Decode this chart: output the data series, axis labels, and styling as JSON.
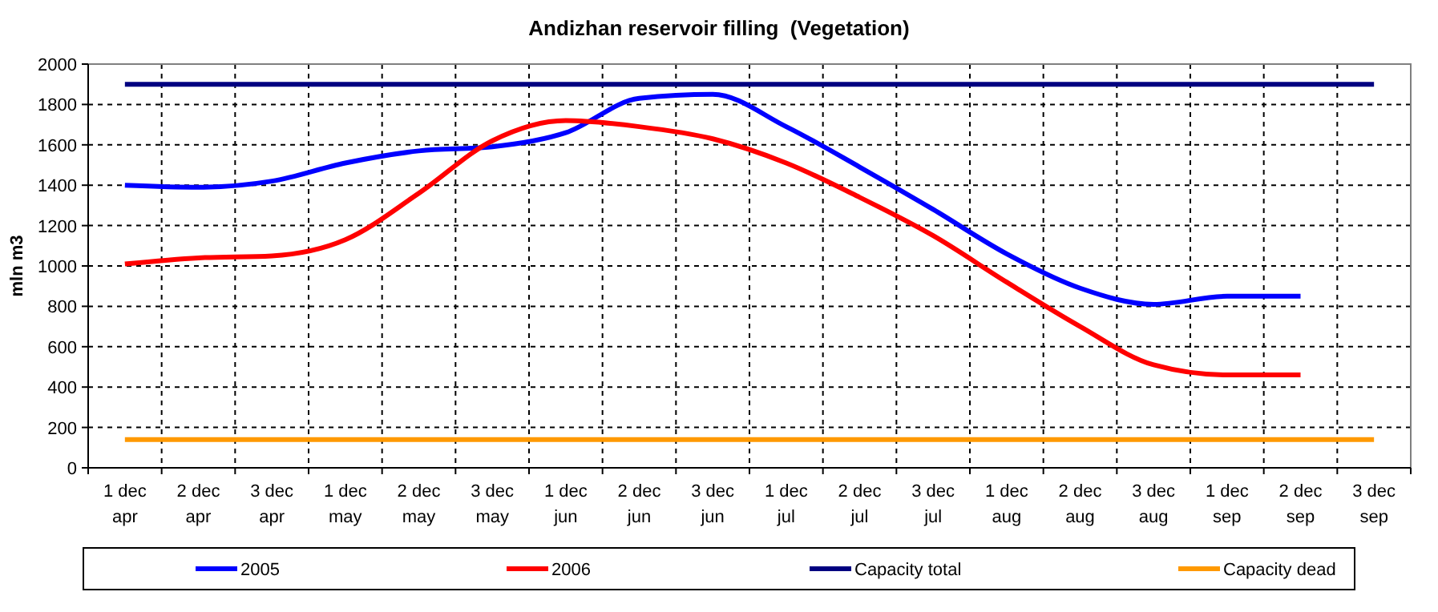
{
  "chart_data": {
    "type": "line",
    "title": "Andizhan reservoir filling  (Vegetation)",
    "ylabel": "mln m3",
    "categories": [
      "1 dec\napr",
      "2 dec\napr",
      "3 dec\napr",
      "1 dec\nmay",
      "2 dec\nmay",
      "3 dec\nmay",
      "1 dec\njun",
      "2 dec\njun",
      "3 dec\njun",
      "1 dec\njul",
      "2 dec\njul",
      "3 dec\njul",
      "1 dec\naug",
      "2 dec\naug",
      "3 dec\naug",
      "1 dec\nsep",
      "2 dec\nsep",
      "3 dec\nsep"
    ],
    "series": [
      {
        "name": "2005",
        "color": "#0000ff",
        "values": [
          1400,
          1390,
          1420,
          1510,
          1570,
          1590,
          1660,
          1830,
          1850,
          1690,
          1490,
          1280,
          1060,
          890,
          810,
          850,
          850,
          null
        ]
      },
      {
        "name": "2006",
        "color": "#ff0000",
        "values": [
          1010,
          1040,
          1050,
          1130,
          1360,
          1620,
          1720,
          1690,
          1630,
          1510,
          1340,
          1150,
          920,
          700,
          510,
          460,
          460,
          null
        ]
      },
      {
        "name": "Capacity total",
        "color": "#000080",
        "values": [
          1900,
          1900,
          1900,
          1900,
          1900,
          1900,
          1900,
          1900,
          1900,
          1900,
          1900,
          1900,
          1900,
          1900,
          1900,
          1900,
          1900,
          1900
        ]
      },
      {
        "name": "Capacity dead",
        "color": "#ff9900",
        "values": [
          140,
          140,
          140,
          140,
          140,
          140,
          140,
          140,
          140,
          140,
          140,
          140,
          140,
          140,
          140,
          140,
          140,
          140
        ]
      }
    ],
    "ylim": [
      0,
      2000
    ],
    "yticks": [
      0,
      200,
      400,
      600,
      800,
      1000,
      1200,
      1400,
      1600,
      1800,
      2000
    ],
    "grid": true,
    "legend": "bottom",
    "marker": "none",
    "line_style": "solid"
  }
}
